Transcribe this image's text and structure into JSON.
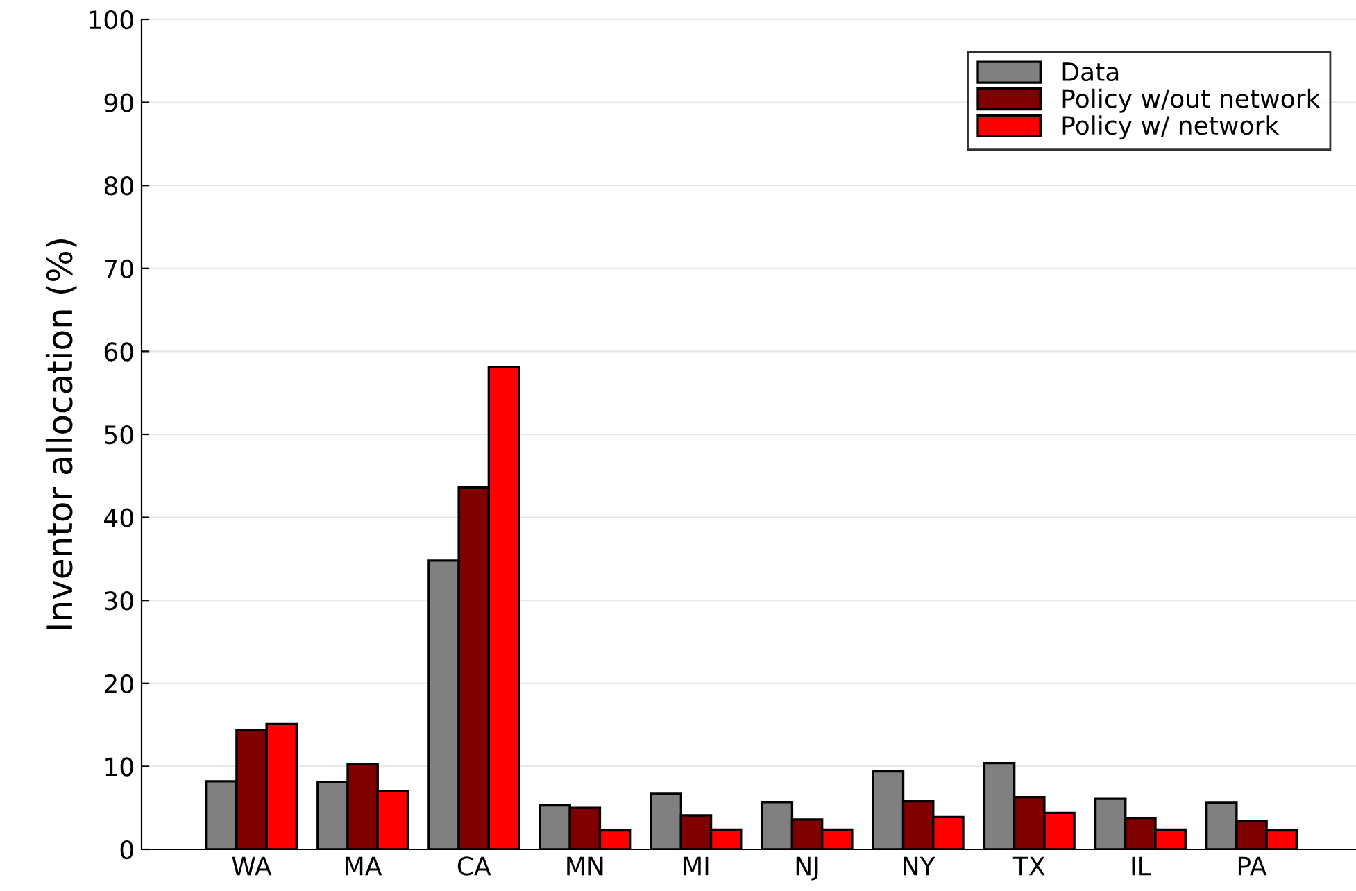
{
  "chart_data": {
    "type": "bar",
    "ylabel": "Inventor allocation (%)",
    "categories": [
      "WA",
      "MA",
      "CA",
      "MN",
      "MI",
      "NJ",
      "NY",
      "TX",
      "IL",
      "PA"
    ],
    "series": [
      {
        "name": "Data",
        "color": "#808080",
        "values": [
          8.2,
          8.1,
          34.8,
          5.3,
          6.7,
          5.7,
          9.4,
          10.4,
          6.1,
          5.6
        ]
      },
      {
        "name": "Policy w/out network",
        "color": "#800000",
        "values": [
          14.4,
          10.3,
          43.6,
          5.0,
          4.1,
          3.6,
          5.8,
          6.3,
          3.8,
          3.4
        ]
      },
      {
        "name": "Policy w/ network",
        "color": "#ff0000",
        "values": [
          15.1,
          7.0,
          58.1,
          2.3,
          2.4,
          2.4,
          3.9,
          4.4,
          2.4,
          2.3
        ]
      }
    ],
    "ylim": [
      0,
      100
    ],
    "yticks": [
      0,
      10,
      20,
      30,
      40,
      50,
      60,
      70,
      80,
      90,
      100
    ],
    "grid": "y",
    "legend": "top right"
  }
}
